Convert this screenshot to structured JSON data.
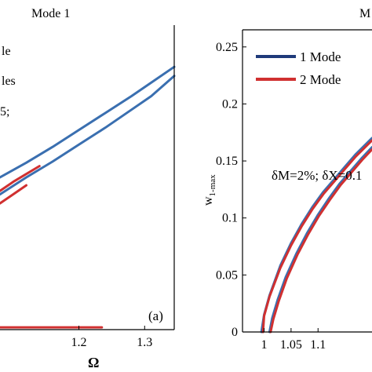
{
  "chart_data": [
    {
      "type": "line",
      "title": "Mode 1",
      "xlabel": "Ω",
      "ylabel": "",
      "xlim": [
        1.08,
        1.345
      ],
      "ylim": [
        0,
        0.27
      ],
      "xticks": [
        1.2,
        1.3
      ],
      "xtick_labels": [
        "1.2",
        "1.3"
      ],
      "grid": false,
      "panel_label": "(a)",
      "legend_partial_text": [
        "le",
        "les",
        "5;"
      ],
      "series": [
        {
          "color": "#3a6fb0",
          "x": [
            1.08,
            1.12,
            1.16,
            1.2,
            1.24,
            1.28,
            1.31,
            1.345
          ],
          "y": [
            0.135,
            0.148,
            0.162,
            0.177,
            0.192,
            0.207,
            0.219,
            0.233
          ]
        },
        {
          "color": "#3a6fb0",
          "x": [
            1.08,
            1.12,
            1.16,
            1.2,
            1.24,
            1.28,
            1.31,
            1.345
          ],
          "y": [
            0.12,
            0.135,
            0.149,
            0.164,
            0.179,
            0.195,
            0.207,
            0.225
          ]
        },
        {
          "color": "#d03030",
          "x": [
            1.08,
            1.1,
            1.12,
            1.14
          ],
          "y": [
            0.123,
            0.131,
            0.138,
            0.145
          ]
        },
        {
          "color": "#d03030",
          "x": [
            1.08,
            1.1,
            1.12
          ],
          "y": [
            0.112,
            0.12,
            0.128
          ]
        },
        {
          "color": "#d03030",
          "x": [
            1.08,
            1.235
          ],
          "y": [
            0.002,
            0.002
          ]
        }
      ]
    },
    {
      "type": "line",
      "title": "M",
      "xlabel": "",
      "ylabel": "w1-max",
      "xlim": [
        0.96,
        1.2
      ],
      "ylim": [
        0,
        0.265
      ],
      "xticks": [
        1.0,
        1.05,
        1.1
      ],
      "xtick_labels": [
        "1",
        "1.05",
        "1.1"
      ],
      "yticks": [
        0,
        0.05,
        0.1,
        0.15,
        0.2,
        0.25
      ],
      "ytick_labels": [
        "0",
        "0.05",
        "0.1",
        "0.15",
        "0.2",
        "0.25"
      ],
      "grid": false,
      "legend": [
        {
          "name": "1 Mode",
          "color": "#1f3a7a"
        },
        {
          "name": "2 Mode",
          "color": "#d03030"
        }
      ],
      "annotation": "δM=2%; δX=0.1",
      "series": [
        {
          "color": "#3a6fb0",
          "x": [
            0.995,
            1.0,
            1.01,
            1.03,
            1.05,
            1.07,
            1.09,
            1.11,
            1.13,
            1.15,
            1.17,
            1.2
          ],
          "y": [
            0,
            0.015,
            0.032,
            0.058,
            0.078,
            0.095,
            0.11,
            0.123,
            0.134,
            0.145,
            0.156,
            0.17
          ]
        },
        {
          "color": "#3a6fb0",
          "x": [
            1.01,
            1.015,
            1.025,
            1.04,
            1.06,
            1.08,
            1.1,
            1.12,
            1.14,
            1.16,
            1.18,
            1.2
          ],
          "y": [
            0,
            0.012,
            0.028,
            0.048,
            0.069,
            0.087,
            0.103,
            0.117,
            0.13,
            0.141,
            0.152,
            0.162
          ]
        },
        {
          "color": "#d03030",
          "x": [
            0.998,
            1.0,
            1.01,
            1.03,
            1.05,
            1.07,
            1.09,
            1.11,
            1.13,
            1.15,
            1.17,
            1.2
          ],
          "y": [
            0,
            0.014,
            0.031,
            0.056,
            0.076,
            0.093,
            0.108,
            0.121,
            0.132,
            0.143,
            0.154,
            0.168
          ]
        },
        {
          "color": "#d03030",
          "x": [
            1.012,
            1.017,
            1.027,
            1.042,
            1.062,
            1.082,
            1.102,
            1.122,
            1.142,
            1.162,
            1.182,
            1.2
          ],
          "y": [
            0,
            0.011,
            0.027,
            0.047,
            0.068,
            0.086,
            0.102,
            0.116,
            0.129,
            0.14,
            0.151,
            0.16
          ]
        }
      ]
    }
  ]
}
